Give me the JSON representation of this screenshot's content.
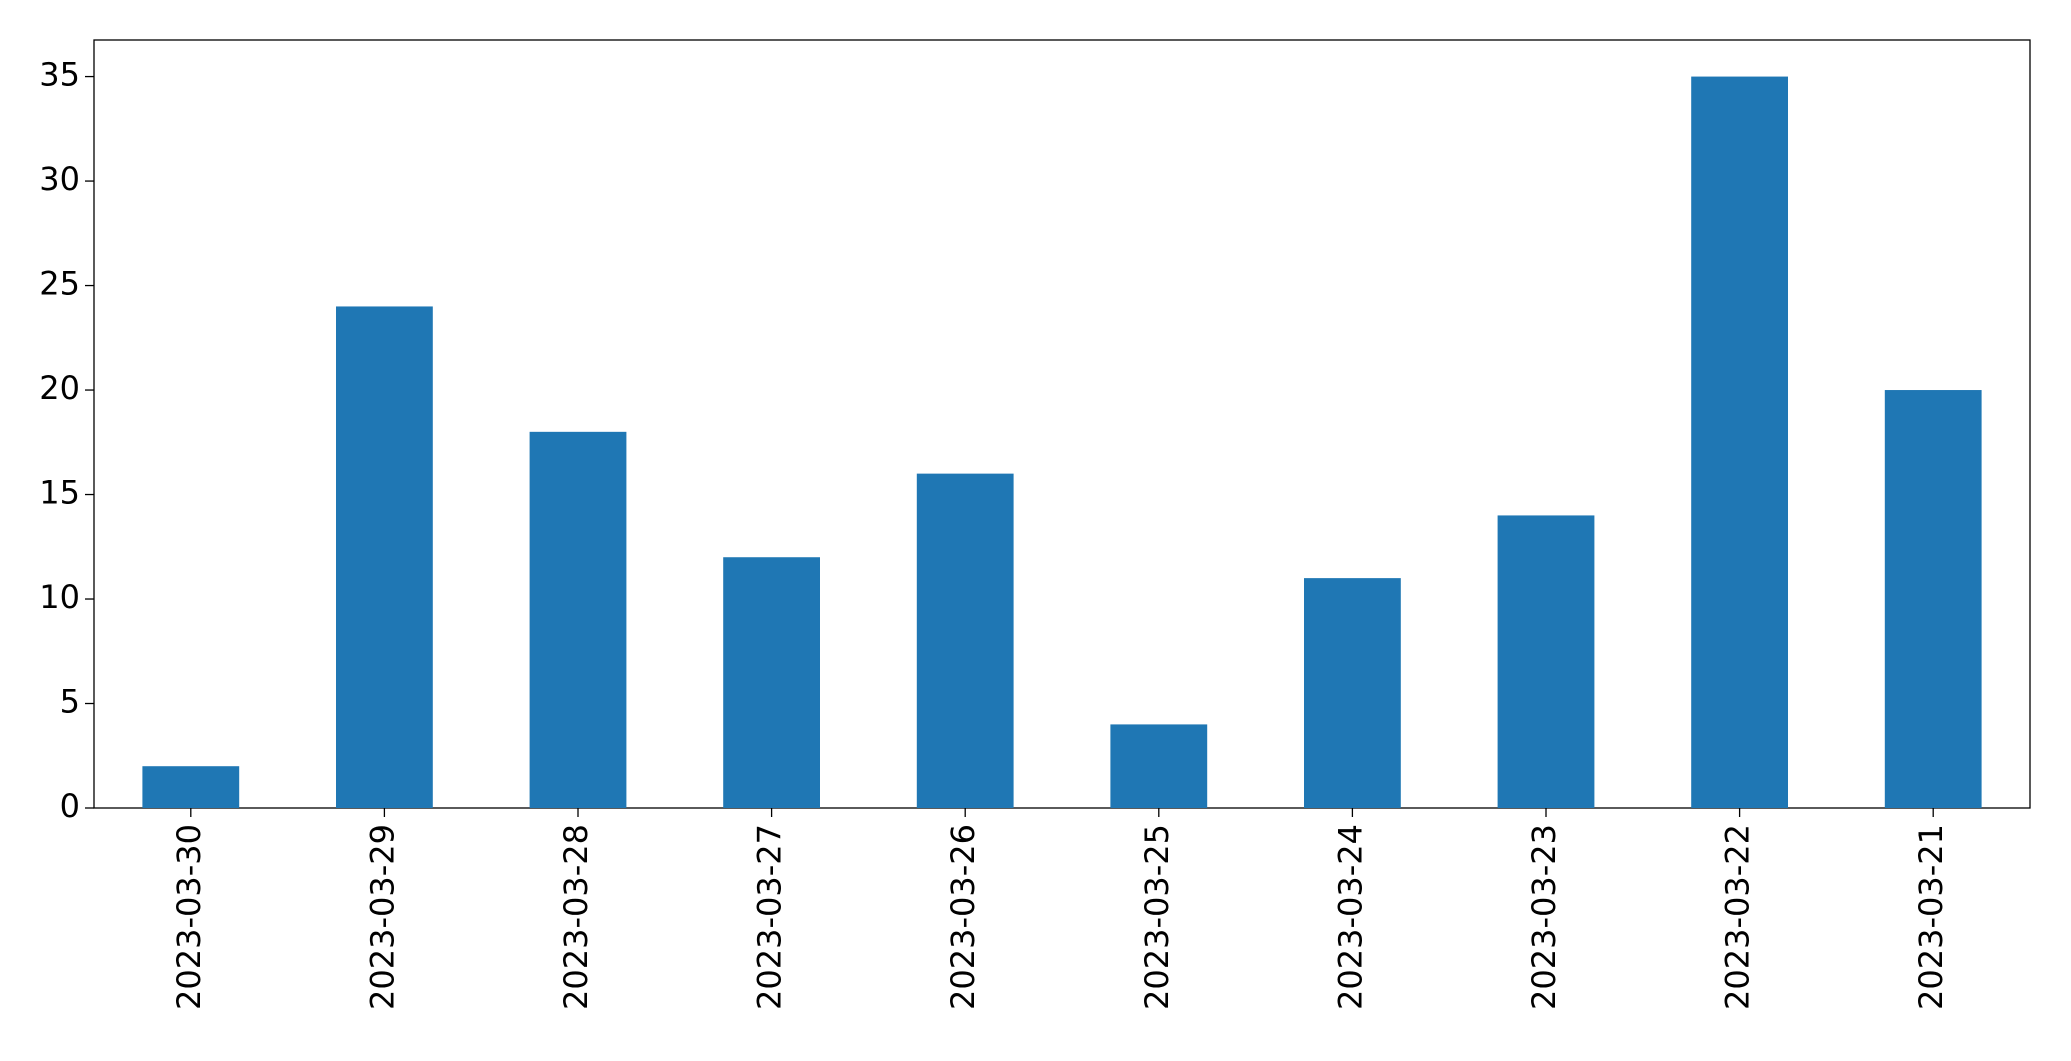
{
  "chart_data": {
    "type": "bar",
    "categories": [
      "2023-03-30",
      "2023-03-29",
      "2023-03-28",
      "2023-03-27",
      "2023-03-26",
      "2023-03-25",
      "2023-03-24",
      "2023-03-23",
      "2023-03-22",
      "2023-03-21"
    ],
    "values": [
      2,
      24,
      18,
      12,
      16,
      4,
      11,
      14,
      35,
      20
    ],
    "color": "#1f77b4",
    "ylim": [
      0,
      36.75
    ],
    "yticks": [
      0,
      5,
      10,
      15,
      20,
      25,
      30,
      35
    ],
    "grid": false
  }
}
